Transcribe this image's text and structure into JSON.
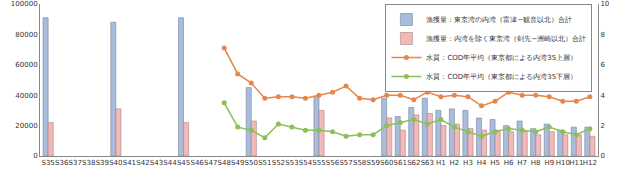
{
  "chart_data": {
    "type": "bar",
    "categories": [
      "S35",
      "S36",
      "S37",
      "S38",
      "S39",
      "S40",
      "S41",
      "S42",
      "S43",
      "S44",
      "S45",
      "S46",
      "S47",
      "S48",
      "S49",
      "S50",
      "S51",
      "S52",
      "S53",
      "S54",
      "S55",
      "S56",
      "S57",
      "S58",
      "S59",
      "S60",
      "S61",
      "S62",
      "S63",
      "H1",
      "H2",
      "H3",
      "H4",
      "H5",
      "H6",
      "H7",
      "H8",
      "H9",
      "H10",
      "H11",
      "H12"
    ],
    "ylim": [
      0,
      100000
    ],
    "yticks": [
      0,
      20000,
      40000,
      60000,
      80000,
      100000
    ],
    "y2lim": [
      0,
      10
    ],
    "y2ticks": [
      0,
      2,
      4,
      6,
      8,
      10
    ],
    "legend": "upper right",
    "series": [
      {
        "name": "漁獲量：東京湾の内湾（富津−観音以北）合計",
        "type": "bar",
        "color": "#a9bcdc",
        "values": [
          91000,
          null,
          null,
          null,
          null,
          88000,
          null,
          null,
          null,
          null,
          91000,
          null,
          null,
          null,
          null,
          45000,
          null,
          null,
          null,
          null,
          39000,
          null,
          null,
          null,
          null,
          38000,
          26000,
          32000,
          38000,
          30000,
          31000,
          30000,
          25000,
          24000,
          20000,
          23000,
          18000,
          21000,
          17000,
          19000,
          19000
        ]
      },
      {
        "name": "漁獲量：内湾を除く東京湾（剣先−洲崎以北）合計",
        "type": "bar",
        "color": "#f2b9b9",
        "values": [
          22000,
          null,
          null,
          null,
          null,
          31000,
          null,
          null,
          null,
          null,
          22000,
          null,
          null,
          null,
          null,
          23000,
          null,
          null,
          null,
          null,
          30000,
          null,
          null,
          null,
          null,
          25000,
          17000,
          27000,
          28000,
          20000,
          21000,
          18000,
          17000,
          17000,
          16000,
          16000,
          14000,
          16000,
          14000,
          14000,
          13000
        ]
      },
      {
        "name": "水質：COD年平均（東京都による内湾35上層）",
        "type": "line",
        "axis": "y2",
        "marker": "circle",
        "color": "#e8864a",
        "values": [
          null,
          null,
          null,
          null,
          null,
          null,
          null,
          null,
          null,
          null,
          null,
          null,
          null,
          7.1,
          5.4,
          4.8,
          3.8,
          3.9,
          3.9,
          3.8,
          4.0,
          4.2,
          4.6,
          3.8,
          3.7,
          4.0,
          4.0,
          3.7,
          4.2,
          3.9,
          4.0,
          3.9,
          3.3,
          3.6,
          4.2,
          4.0,
          4.0,
          3.9,
          3.6,
          3.6,
          3.9
        ]
      },
      {
        "name": "水質：COD年平均（東京都による内湾35下層）",
        "type": "line",
        "axis": "y2",
        "marker": "circle",
        "color": "#8cbf5a",
        "values": [
          null,
          null,
          null,
          null,
          null,
          null,
          null,
          null,
          null,
          null,
          null,
          null,
          null,
          3.5,
          1.9,
          1.7,
          1.2,
          2.1,
          1.9,
          1.7,
          1.7,
          1.6,
          1.3,
          1.4,
          1.4,
          2.0,
          2.2,
          2.4,
          2.1,
          2.4,
          1.9,
          1.6,
          1.3,
          1.6,
          1.8,
          1.7,
          1.6,
          1.9,
          1.6,
          1.4,
          1.8
        ]
      }
    ]
  }
}
